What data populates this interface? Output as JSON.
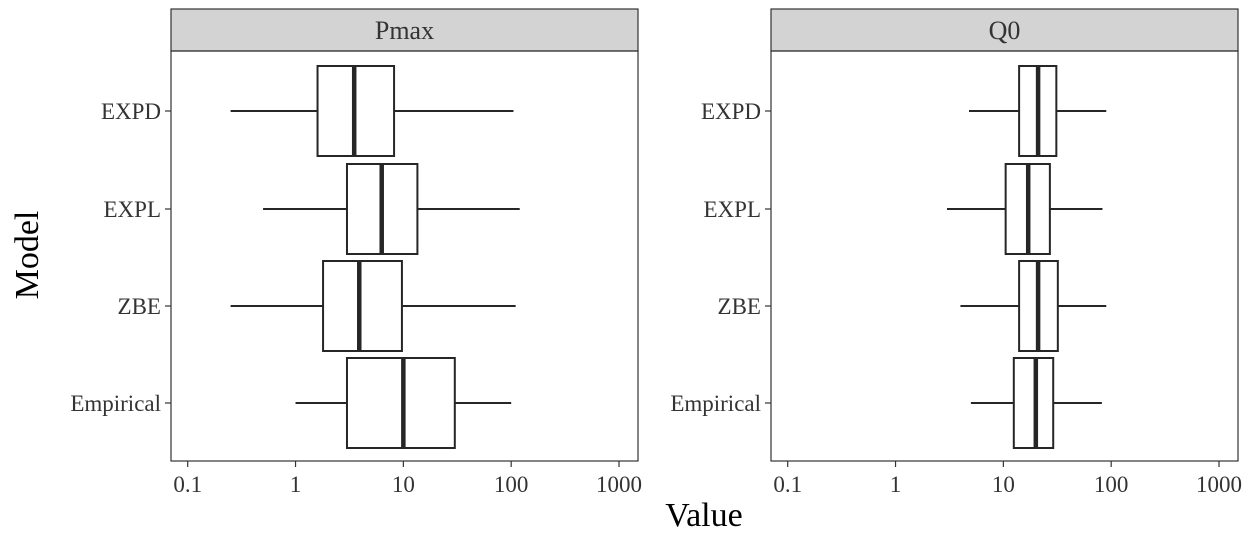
{
  "chart_data": {
    "type": "boxplot",
    "xlabel": "Value",
    "ylabel": "Model",
    "x_scale": "log10",
    "xlim": [
      0.07,
      1500
    ],
    "x_ticks": [
      0.1,
      1,
      10,
      100,
      1000
    ],
    "x_tick_labels": [
      "0.1",
      "1",
      "10",
      "100",
      "1000"
    ],
    "categories": [
      "EXPD",
      "EXPL",
      "ZBE",
      "Empirical"
    ],
    "grid": false,
    "colors": {
      "strip_fill": "#d3d3d3",
      "box_line": "#262626",
      "panel_border": "#333333"
    },
    "panels": [
      {
        "title": "Pmax",
        "boxes": [
          {
            "category": "EXPD",
            "whisker_low": 0.25,
            "q1": 1.6,
            "median": 3.5,
            "q3": 8.2,
            "whisker_high": 105
          },
          {
            "category": "EXPL",
            "whisker_low": 0.5,
            "q1": 3.0,
            "median": 6.3,
            "q3": 13.5,
            "whisker_high": 120
          },
          {
            "category": "ZBE",
            "whisker_low": 0.25,
            "q1": 1.8,
            "median": 3.9,
            "q3": 9.7,
            "whisker_high": 110
          },
          {
            "category": "Empirical",
            "whisker_low": 1.0,
            "q1": 3.0,
            "median": 10.0,
            "q3": 30.0,
            "whisker_high": 100
          }
        ]
      },
      {
        "title": "Q0",
        "boxes": [
          {
            "category": "EXPD",
            "whisker_low": 4.8,
            "q1": 14.0,
            "median": 21.0,
            "q3": 31.0,
            "whisker_high": 90
          },
          {
            "category": "EXPL",
            "whisker_low": 3.0,
            "q1": 10.5,
            "median": 17.0,
            "q3": 27.0,
            "whisker_high": 83
          },
          {
            "category": "ZBE",
            "whisker_low": 4.0,
            "q1": 14.0,
            "median": 21.0,
            "q3": 32.0,
            "whisker_high": 90
          },
          {
            "category": "Empirical",
            "whisker_low": 5.0,
            "q1": 12.5,
            "median": 20.0,
            "q3": 29.0,
            "whisker_high": 82
          }
        ]
      }
    ]
  }
}
